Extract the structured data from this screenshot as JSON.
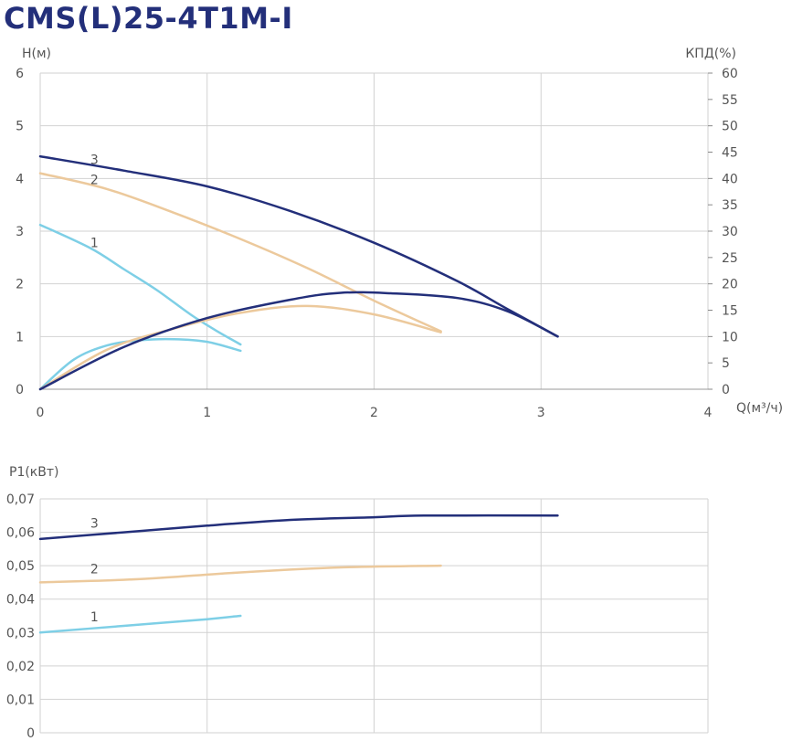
{
  "title": "CMS(L)25-4T1M-I",
  "colors": {
    "title": "#232f7a",
    "curve_1": "#7ecfe6",
    "curve_2": "#ecc99c",
    "curve_3": "#232f7a",
    "grid": "#d2d2d2",
    "text": "#555555"
  },
  "chart_data": [
    {
      "type": "line",
      "ylabel_left": "H(м)",
      "ylabel_right": "КПД(%)",
      "xlabel": "Q(м³/ч)",
      "xlim": [
        0,
        4
      ],
      "ylim": [
        0,
        6
      ],
      "y2lim": [
        0,
        60
      ],
      "xticks": [
        "0",
        "1",
        "2",
        "3",
        "4"
      ],
      "yticks": [
        "0",
        "1",
        "2",
        "3",
        "4",
        "5",
        "6"
      ],
      "y2ticks": [
        "0",
        "5",
        "10",
        "15",
        "20",
        "25",
        "30",
        "35",
        "40",
        "45",
        "50",
        "55",
        "60"
      ],
      "grid": true,
      "series": [
        {
          "name": "1",
          "kind": "head",
          "color": "#7ecfe6",
          "points": [
            [
              0,
              3.12
            ],
            [
              0.3,
              2.68
            ],
            [
              0.5,
              2.28
            ],
            [
              0.7,
              1.88
            ],
            [
              0.9,
              1.42
            ],
            [
              1.05,
              1.12
            ],
            [
              1.2,
              0.85
            ]
          ]
        },
        {
          "name": "2",
          "kind": "head",
          "color": "#ecc99c",
          "points": [
            [
              0,
              4.1
            ],
            [
              0.4,
              3.8
            ],
            [
              0.8,
              3.35
            ],
            [
              1.2,
              2.85
            ],
            [
              1.6,
              2.3
            ],
            [
              2.0,
              1.68
            ],
            [
              2.4,
              1.1
            ]
          ]
        },
        {
          "name": "3",
          "kind": "head",
          "color": "#232f7a",
          "points": [
            [
              0,
              4.42
            ],
            [
              0.5,
              4.15
            ],
            [
              1.0,
              3.85
            ],
            [
              1.5,
              3.38
            ],
            [
              2.0,
              2.78
            ],
            [
              2.5,
              2.05
            ],
            [
              2.8,
              1.52
            ],
            [
              3.1,
              1.0
            ]
          ]
        },
        {
          "name": "1",
          "kind": "efficiency",
          "color": "#7ecfe6",
          "points": [
            [
              0,
              0
            ],
            [
              0.2,
              5.6
            ],
            [
              0.4,
              8.3
            ],
            [
              0.6,
              9.3
            ],
            [
              0.8,
              9.5
            ],
            [
              1.0,
              9.0
            ],
            [
              1.2,
              7.3
            ]
          ]
        },
        {
          "name": "2",
          "kind": "efficiency",
          "color": "#ecc99c",
          "points": [
            [
              0,
              0
            ],
            [
              0.4,
              7.5
            ],
            [
              0.8,
              11.5
            ],
            [
              1.2,
              14.5
            ],
            [
              1.6,
              15.8
            ],
            [
              2.0,
              14.2
            ],
            [
              2.4,
              10.8
            ]
          ]
        },
        {
          "name": "3",
          "kind": "efficiency",
          "color": "#232f7a",
          "points": [
            [
              0,
              0
            ],
            [
              0.5,
              8.0
            ],
            [
              1.0,
              13.5
            ],
            [
              1.5,
              17.0
            ],
            [
              1.8,
              18.3
            ],
            [
              2.1,
              18.2
            ],
            [
              2.5,
              17.3
            ],
            [
              2.8,
              14.8
            ],
            [
              3.1,
              10.0
            ]
          ]
        }
      ]
    },
    {
      "type": "line",
      "ylabel": "P1(кВт)",
      "xlim": [
        0,
        4
      ],
      "ylim": [
        0,
        0.07
      ],
      "yticks": [
        "0",
        "0,01",
        "0,02",
        "0,03",
        "0,04",
        "0,05",
        "0,06",
        "0,07"
      ],
      "grid": true,
      "series": [
        {
          "name": "1",
          "color": "#7ecfe6",
          "points": [
            [
              0,
              0.03
            ],
            [
              0.5,
              0.032
            ],
            [
              1.0,
              0.034
            ],
            [
              1.2,
              0.035
            ]
          ]
        },
        {
          "name": "2",
          "color": "#ecc99c",
          "points": [
            [
              0,
              0.045
            ],
            [
              0.6,
              0.046
            ],
            [
              1.2,
              0.048
            ],
            [
              1.8,
              0.0495
            ],
            [
              2.4,
              0.05
            ]
          ]
        },
        {
          "name": "3",
          "color": "#232f7a",
          "points": [
            [
              0,
              0.058
            ],
            [
              0.5,
              0.06
            ],
            [
              1.0,
              0.062
            ],
            [
              1.5,
              0.0637
            ],
            [
              2.0,
              0.0645
            ],
            [
              2.3,
              0.065
            ],
            [
              3.1,
              0.065
            ]
          ]
        }
      ]
    }
  ]
}
